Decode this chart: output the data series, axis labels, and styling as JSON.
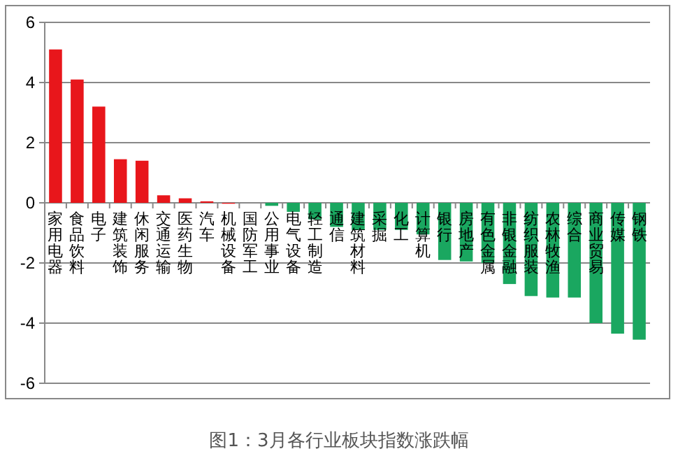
{
  "chart_data": {
    "type": "bar",
    "title": "图1：3月各行业板块指数涨跌幅",
    "categories": [
      "家用电器",
      "食品饮料",
      "电子",
      "建筑装饰",
      "休闲服务",
      "交通运输",
      "医药生物",
      "汽车",
      "机械设备",
      "国防军工",
      "公用事业",
      "电气设备",
      "轻工制造",
      "通信",
      "建筑材料",
      "采掘",
      "化工",
      "计算机",
      "银行",
      "房地产",
      "有色金属",
      "非银金融",
      "纺织服装",
      "农林牧渔",
      "综合",
      "商业贸易",
      "传媒",
      "钢铁"
    ],
    "values": [
      5.1,
      4.1,
      3.2,
      1.45,
      1.4,
      0.25,
      0.15,
      0.05,
      -0.03,
      0,
      -0.1,
      -0.3,
      -0.55,
      -0.8,
      -0.9,
      -0.9,
      -0.9,
      -1.05,
      -1.9,
      -1.95,
      -2.0,
      -2.7,
      -3.1,
      -3.15,
      -3.15,
      -4.0,
      -4.35,
      -4.55
    ],
    "colors": [
      "#e8161b",
      "#e8161b",
      "#e8161b",
      "#e8161b",
      "#e8161b",
      "#e8161b",
      "#e8161b",
      "#e8161b",
      "#e8161b",
      "#e8161b",
      "#1aa760",
      "#1aa760",
      "#1aa760",
      "#1aa760",
      "#1aa760",
      "#1aa760",
      "#1aa760",
      "#1aa760",
      "#1aa760",
      "#1aa760",
      "#1aa760",
      "#1aa760",
      "#1aa760",
      "#1aa760",
      "#1aa760",
      "#1aa760",
      "#1aa760",
      "#1aa760"
    ],
    "ylim": [
      -6,
      6
    ],
    "yticks": [
      -6,
      -4,
      -2,
      0,
      2,
      4,
      6
    ],
    "grid": "y"
  }
}
